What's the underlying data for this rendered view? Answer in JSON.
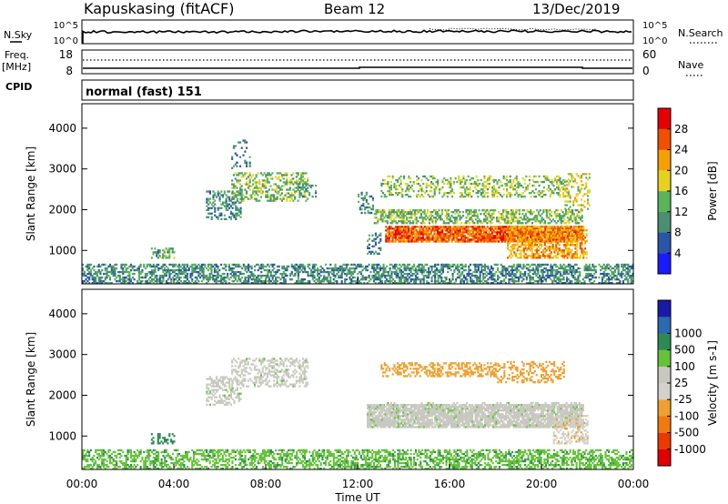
{
  "header": {
    "station": "Kapuskasing (fitACF)",
    "beam": "Beam 12",
    "date": "13/Dec/2019"
  },
  "noise_panel": {
    "left_label": "N.Sky",
    "left_ticks": [
      "10^5",
      "10^0"
    ],
    "right_ticks": [
      "10^5",
      "10^0"
    ],
    "right_label": "N.Search"
  },
  "freq_panel": {
    "left_label_1": "Freq.",
    "left_label_2": "[MHz]",
    "left_ticks": [
      "18",
      "8"
    ],
    "right_ticks": [
      "60",
      "0"
    ],
    "right_label": "Nave"
  },
  "cpid_panel": {
    "left_label": "CPID",
    "mode": "normal (fast) 151"
  },
  "colors": {
    "power_scale": [
      "#1a1aff",
      "#2b55a8",
      "#4a9070",
      "#5ab45a",
      "#e6d21e",
      "#f5a000",
      "#f05000",
      "#e60000"
    ],
    "velocity_scale": [
      "#1a1aa8",
      "#2a6ab0",
      "#2e8a55",
      "#66c23a",
      "#c8c8c0",
      "#d2d2ca",
      "#f0a030",
      "#f07a10",
      "#ea3a00",
      "#e00000"
    ],
    "ground_scatter": "#c8c8c0"
  },
  "chart_data": [
    {
      "type": "heatmap",
      "title": "",
      "xlabel": "Time UT",
      "ylabel": "Slant Range [km]",
      "xlim": [
        "00:00",
        "24:00"
      ],
      "ylim": [
        180,
        4600
      ],
      "x_ticks": [
        "00:00",
        "04:00",
        "08:00",
        "12:00",
        "16:00",
        "20:00",
        "00:00"
      ],
      "y_ticks": [
        "1000",
        "2000",
        "3000",
        "4000"
      ],
      "colorbar": {
        "label": "Power [dB]",
        "range": [
          0,
          32
        ],
        "ticks": [
          "4",
          "8",
          "12",
          "16",
          "20",
          "24",
          "28"
        ]
      },
      "regions": [
        {
          "t_start": 0.0,
          "t_end": 24.0,
          "r_min": 180,
          "r_max": 650,
          "value": 10,
          "density": 0.55
        },
        {
          "t_start": 3.0,
          "t_end": 4.0,
          "r_min": 800,
          "r_max": 1050,
          "value": 12,
          "density": 0.5
        },
        {
          "t_start": 5.4,
          "t_end": 6.9,
          "r_min": 1750,
          "r_max": 2450,
          "value": 10,
          "density": 0.45
        },
        {
          "t_start": 6.5,
          "t_end": 9.8,
          "r_min": 2200,
          "r_max": 2900,
          "value": 14,
          "density": 0.4
        },
        {
          "t_start": 6.5,
          "t_end": 7.3,
          "r_min": 3000,
          "r_max": 3700,
          "value": 8,
          "density": 0.2
        },
        {
          "t_start": 9.3,
          "t_end": 10.2,
          "r_min": 2300,
          "r_max": 2650,
          "value": 10,
          "density": 0.3
        },
        {
          "t_start": 12.0,
          "t_end": 12.7,
          "r_min": 1900,
          "r_max": 2400,
          "value": 9,
          "density": 0.35
        },
        {
          "t_start": 12.4,
          "t_end": 13.0,
          "r_min": 900,
          "r_max": 1400,
          "value": 9,
          "density": 0.3
        },
        {
          "t_start": 12.7,
          "t_end": 21.8,
          "r_min": 1650,
          "r_max": 2000,
          "value": 14,
          "density": 0.55
        },
        {
          "t_start": 13.2,
          "t_end": 21.8,
          "r_min": 1200,
          "r_max": 1600,
          "value": 25,
          "density": 0.85
        },
        {
          "t_start": 18.5,
          "t_end": 22.0,
          "r_min": 800,
          "r_max": 1600,
          "value": 22,
          "density": 0.6
        },
        {
          "t_start": 13.0,
          "t_end": 21.0,
          "r_min": 2300,
          "r_max": 2800,
          "value": 15,
          "density": 0.35
        },
        {
          "t_start": 21.0,
          "t_end": 22.1,
          "r_min": 2000,
          "r_max": 2900,
          "value": 18,
          "density": 0.35
        }
      ]
    },
    {
      "type": "heatmap",
      "title": "",
      "xlabel": "Time UT",
      "ylabel": "Slant Range [km]",
      "xlim": [
        "00:00",
        "24:00"
      ],
      "ylim": [
        180,
        4600
      ],
      "x_ticks": [
        "00:00",
        "04:00",
        "08:00",
        "12:00",
        "16:00",
        "20:00",
        "00:00"
      ],
      "y_ticks": [
        "1000",
        "2000",
        "3000",
        "4000"
      ],
      "colorbar": {
        "label": "Velocity [m s-1]",
        "range": [
          -1200,
          1200
        ],
        "ticks": [
          "1000",
          "500",
          "100",
          "25",
          "-25",
          "-100",
          "-500",
          "-1000"
        ]
      },
      "regions": [
        {
          "t_start": 0.0,
          "t_end": 24.0,
          "r_min": 180,
          "r_max": 650,
          "value": 80,
          "density": 0.5
        },
        {
          "t_start": 3.0,
          "t_end": 4.0,
          "r_min": 800,
          "r_max": 1050,
          "value": 150,
          "density": 0.4
        },
        {
          "t_start": 5.4,
          "t_end": 6.9,
          "r_min": 1750,
          "r_max": 2450,
          "value": 0,
          "density": 0.45
        },
        {
          "t_start": 6.5,
          "t_end": 9.8,
          "r_min": 2200,
          "r_max": 2900,
          "value": 0,
          "density": 0.4
        },
        {
          "t_start": 12.4,
          "t_end": 21.8,
          "r_min": 1200,
          "r_max": 1750,
          "value": 0,
          "density": 0.85
        },
        {
          "t_start": 13.0,
          "t_end": 21.8,
          "r_min": 1700,
          "r_max": 1800,
          "value": 0,
          "density": 0.3
        },
        {
          "t_start": 13.0,
          "t_end": 18.0,
          "r_min": 2450,
          "r_max": 2800,
          "value": -300,
          "density": 0.45
        },
        {
          "t_start": 18.0,
          "t_end": 21.0,
          "r_min": 2300,
          "r_max": 2800,
          "value": -150,
          "density": 0.35
        },
        {
          "t_start": 20.5,
          "t_end": 22.0,
          "r_min": 800,
          "r_max": 1500,
          "value": -80,
          "density": 0.5
        }
      ]
    }
  ]
}
